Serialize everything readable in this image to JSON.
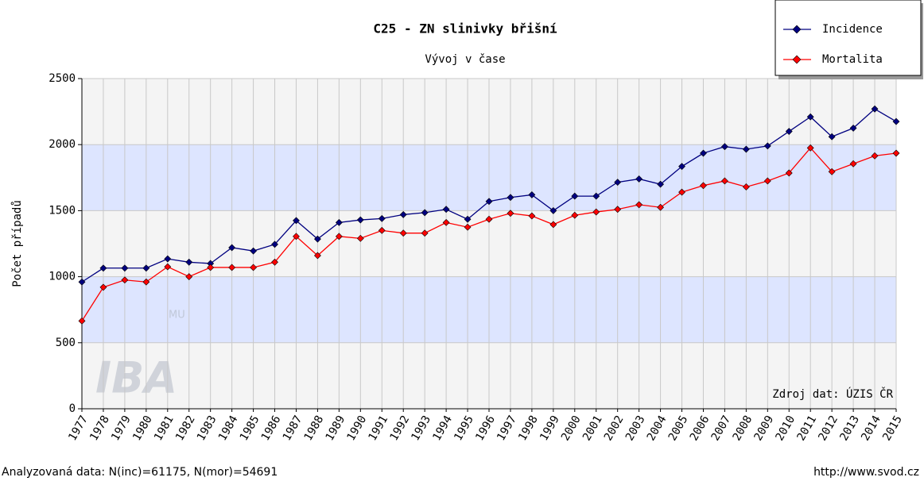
{
  "chart_data": {
    "type": "line",
    "title": "C25 - ZN slinivky břišní",
    "subtitle": "Vývoj v čase",
    "y_label": "Počet případů",
    "annotation": "Zdroj dat: ÚZIS ČR",
    "footer_left": "Analyzovaná data: N(inc)=61175, N(mor)=54691",
    "footer_right": "http://www.svod.cz",
    "watermark": {
      "text": "IBA",
      "sub": "MU"
    },
    "categories": [
      "1977",
      "1978",
      "1979",
      "1980",
      "1981",
      "1982",
      "1983",
      "1984",
      "1985",
      "1986",
      "1987",
      "1988",
      "1989",
      "1990",
      "1991",
      "1992",
      "1993",
      "1994",
      "1995",
      "1996",
      "1997",
      "1998",
      "1999",
      "2000",
      "2001",
      "2002",
      "2003",
      "2004",
      "2005",
      "2006",
      "2007",
      "2008",
      "2009",
      "2010",
      "2011",
      "2012",
      "2013",
      "2014",
      "2015"
    ],
    "series": [
      {
        "name": "Incidence",
        "color": "#000080",
        "values": [
          960,
          1065,
          1065,
          1065,
          1135,
          1110,
          1100,
          1220,
          1195,
          1245,
          1425,
          1285,
          1410,
          1430,
          1440,
          1470,
          1485,
          1510,
          1435,
          1570,
          1600,
          1620,
          1500,
          1610,
          1610,
          1715,
          1740,
          1700,
          1835,
          1935,
          1985,
          1965,
          1990,
          2100,
          2210,
          2060,
          2125,
          2270,
          2175
        ]
      },
      {
        "name": "Mortalita",
        "color": "#ff0000",
        "values": [
          665,
          920,
          975,
          960,
          1075,
          1000,
          1070,
          1070,
          1070,
          1110,
          1305,
          1160,
          1305,
          1290,
          1350,
          1330,
          1330,
          1410,
          1375,
          1435,
          1480,
          1460,
          1395,
          1465,
          1490,
          1510,
          1545,
          1525,
          1640,
          1690,
          1725,
          1680,
          1725,
          1785,
          1975,
          1795,
          1855,
          1915,
          1935
        ]
      }
    ],
    "ylim": [
      0,
      2500
    ],
    "yticks": [
      0,
      500,
      1000,
      1500,
      2000,
      2500
    ],
    "grid": true,
    "bands": true,
    "legend": "top-right"
  }
}
